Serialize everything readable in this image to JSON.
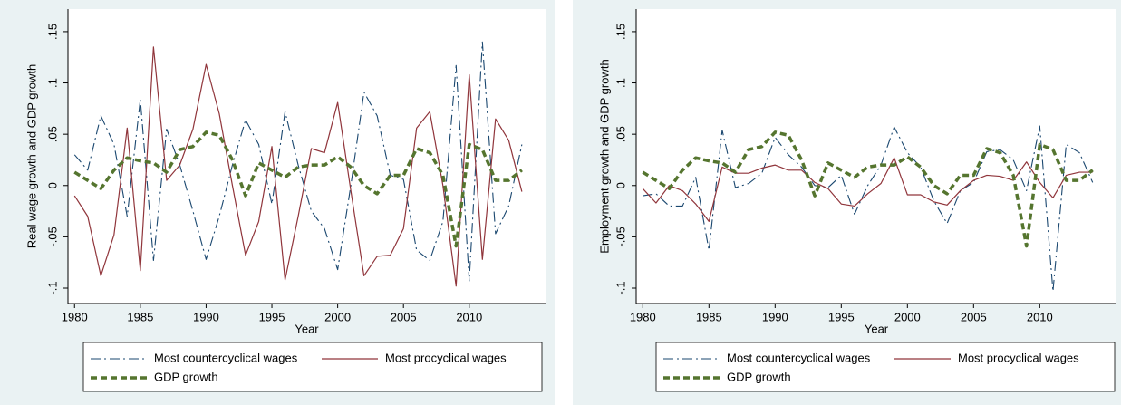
{
  "chart_data": [
    {
      "type": "line",
      "y_label": "Real wage growth and GDP growth",
      "x_label": "Year",
      "x": [
        1980,
        1981,
        1982,
        1983,
        1984,
        1985,
        1986,
        1987,
        1988,
        1989,
        1990,
        1991,
        1992,
        1993,
        1994,
        1995,
        1996,
        1997,
        1998,
        1999,
        2000,
        2001,
        2002,
        2003,
        2004,
        2005,
        2006,
        2007,
        2008,
        2009,
        2010,
        2011,
        2012,
        2013,
        2014
      ],
      "xlim": [
        1979.5,
        2015.8
      ],
      "xticks": [
        1980,
        1985,
        1990,
        1995,
        2000,
        2005,
        2010
      ],
      "ylim": [
        -0.115,
        0.172
      ],
      "yticks": [
        {
          "value": -0.1,
          "label": "-.1"
        },
        {
          "value": -0.05,
          "label": "-.05"
        },
        0,
        {
          "value": 0.05,
          "label": ".05"
        },
        {
          "value": 0.1,
          "label": ".1"
        },
        {
          "value": 0.15,
          "label": ".15"
        }
      ],
      "legend": "bottom",
      "series": [
        {
          "name": "Most countercyclical wages",
          "color": "#1a476f",
          "linestyle": "dash-dot",
          "values": [
            0.03,
            0.015,
            0.068,
            0.04,
            -0.03,
            0.084,
            -0.073,
            0.055,
            0.02,
            -0.025,
            -0.072,
            -0.03,
            0.02,
            0.064,
            0.04,
            -0.018,
            0.072,
            0.02,
            -0.025,
            -0.042,
            -0.082,
            0.0,
            0.091,
            0.068,
            0.01,
            0.006,
            -0.063,
            -0.073,
            -0.035,
            0.117,
            -0.093,
            0.14,
            -0.047,
            -0.02,
            0.04
          ]
        },
        {
          "name": "Most procyclical wages",
          "color": "#90353b",
          "linestyle": "solid",
          "values": [
            -0.01,
            -0.03,
            -0.088,
            -0.048,
            0.056,
            -0.083,
            0.135,
            0.005,
            0.02,
            0.055,
            0.118,
            0.07,
            0.0,
            -0.068,
            -0.035,
            0.038,
            -0.092,
            -0.03,
            0.036,
            0.032,
            0.081,
            -0.005,
            -0.088,
            -0.069,
            -0.068,
            -0.042,
            0.056,
            0.072,
            0.0,
            -0.098,
            0.108,
            -0.072,
            0.065,
            0.044,
            -0.006
          ]
        },
        {
          "name": "GDP growth",
          "color": "#55752f",
          "linestyle": "dashed",
          "values": [
            0.013,
            0.005,
            -0.003,
            0.015,
            0.027,
            0.024,
            0.022,
            0.013,
            0.035,
            0.038,
            0.052,
            0.049,
            0.025,
            -0.01,
            0.022,
            0.015,
            0.008,
            0.018,
            0.02,
            0.02,
            0.028,
            0.018,
            0.0,
            -0.008,
            0.01,
            0.01,
            0.036,
            0.032,
            0.01,
            -0.059,
            0.04,
            0.035,
            0.005,
            0.005,
            0.015
          ]
        }
      ]
    },
    {
      "type": "line",
      "y_label": "Employment growth and GDP growth",
      "x_label": "Year",
      "x": [
        1980,
        1981,
        1982,
        1983,
        1984,
        1985,
        1986,
        1987,
        1988,
        1989,
        1990,
        1991,
        1992,
        1993,
        1994,
        1995,
        1996,
        1997,
        1998,
        1999,
        2000,
        2001,
        2002,
        2003,
        2004,
        2005,
        2006,
        2007,
        2008,
        2009,
        2010,
        2011,
        2012,
        2013,
        2014
      ],
      "xlim": [
        1979.5,
        2015.8
      ],
      "xticks": [
        1980,
        1985,
        1990,
        1995,
        2000,
        2005,
        2010
      ],
      "ylim": [
        -0.115,
        0.172
      ],
      "yticks": [
        {
          "value": -0.1,
          "label": "-.1"
        },
        {
          "value": -0.05,
          "label": "-.05"
        },
        0,
        {
          "value": 0.05,
          "label": ".05"
        },
        {
          "value": 0.1,
          "label": ".1"
        },
        {
          "value": 0.15,
          "label": ".15"
        }
      ],
      "legend": "bottom",
      "series": [
        {
          "name": "Most countercyclical wages",
          "color": "#1a476f",
          "linestyle": "dash-dot",
          "values": [
            -0.01,
            -0.008,
            -0.02,
            -0.02,
            0.008,
            -0.063,
            0.054,
            -0.002,
            0.002,
            0.012,
            0.047,
            0.03,
            0.018,
            0.0,
            -0.002,
            0.01,
            -0.028,
            0.0,
            0.02,
            0.057,
            0.032,
            0.018,
            -0.015,
            -0.037,
            -0.005,
            0.003,
            0.033,
            0.035,
            0.025,
            -0.005,
            0.058,
            -0.103,
            0.04,
            0.032,
            0.003
          ]
        },
        {
          "name": "Most procyclical wages",
          "color": "#90353b",
          "linestyle": "solid",
          "values": [
            -0.003,
            -0.017,
            0.0,
            -0.005,
            -0.018,
            -0.035,
            0.018,
            0.012,
            0.012,
            0.017,
            0.02,
            0.015,
            0.015,
            0.003,
            -0.003,
            -0.018,
            -0.02,
            -0.008,
            0.002,
            0.027,
            -0.009,
            -0.009,
            -0.016,
            -0.019,
            -0.005,
            0.005,
            0.01,
            0.009,
            0.005,
            0.023,
            0.003,
            -0.012,
            0.01,
            0.013,
            0.013
          ]
        },
        {
          "name": "GDP growth",
          "color": "#55752f",
          "linestyle": "dashed",
          "values": [
            0.013,
            0.005,
            -0.003,
            0.015,
            0.027,
            0.024,
            0.022,
            0.013,
            0.035,
            0.038,
            0.052,
            0.049,
            0.025,
            -0.01,
            0.022,
            0.015,
            0.008,
            0.018,
            0.02,
            0.02,
            0.028,
            0.018,
            0.0,
            -0.008,
            0.01,
            0.01,
            0.036,
            0.032,
            0.01,
            -0.059,
            0.04,
            0.035,
            0.005,
            0.005,
            0.015
          ]
        }
      ]
    }
  ]
}
